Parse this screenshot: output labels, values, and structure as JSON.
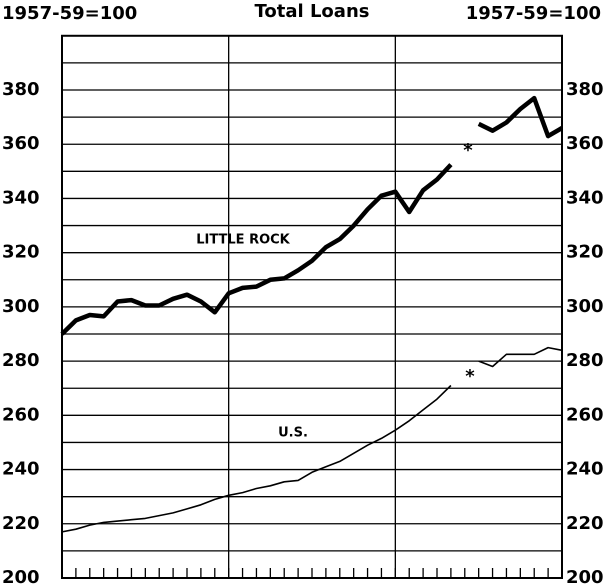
{
  "chart_data": {
    "type": "line",
    "title": "Total Loans",
    "ylabel": "1957-59=100",
    "y2label": "1957-59=100",
    "categories": [
      null,
      null,
      null,
      null,
      null,
      null,
      null,
      null,
      null,
      null,
      null,
      null,
      null,
      null,
      null,
      null,
      null,
      null,
      null,
      null,
      null,
      null,
      null,
      null,
      null,
      null,
      null,
      null,
      null,
      null,
      null,
      null,
      null,
      null,
      null,
      null,
      null
    ],
    "series": [
      {
        "name": "LITTLE ROCK",
        "color": "#000000",
        "values": [
          290,
          295,
          297,
          296.5,
          302,
          302.5,
          300.5,
          300.5,
          303,
          304.5,
          302,
          298,
          305,
          307,
          307.5,
          310,
          310.5,
          313.5,
          317,
          322,
          325,
          330,
          336,
          341,
          342.5,
          335,
          343,
          347,
          352.5,
          null,
          367.5,
          365,
          368,
          373,
          377,
          363,
          366
        ]
      },
      {
        "name": "U.S.",
        "color": "#000000",
        "values": [
          217,
          218,
          219.5,
          220.5,
          221,
          221.5,
          222,
          223,
          224,
          225.5,
          227,
          229,
          230.5,
          231.5,
          233,
          234,
          235.5,
          236,
          239,
          241,
          243,
          246,
          249,
          251.5,
          254.5,
          258,
          262,
          266,
          271,
          null,
          280,
          278,
          282.5,
          282.5,
          282.5,
          285,
          284
        ]
      }
    ],
    "annotations": [
      "*",
      "*"
    ],
    "ylim": [
      200,
      400
    ],
    "yticks": [
      200,
      220,
      240,
      260,
      280,
      300,
      320,
      340,
      360,
      380
    ],
    "minor_yticks": [
      210,
      230,
      250,
      270,
      290,
      310,
      330,
      350,
      370,
      390
    ],
    "y2lim": [
      200,
      400
    ],
    "y2ticks": [
      200,
      220,
      240,
      260,
      280,
      300,
      320,
      340,
      360,
      380
    ],
    "grid": true
  }
}
